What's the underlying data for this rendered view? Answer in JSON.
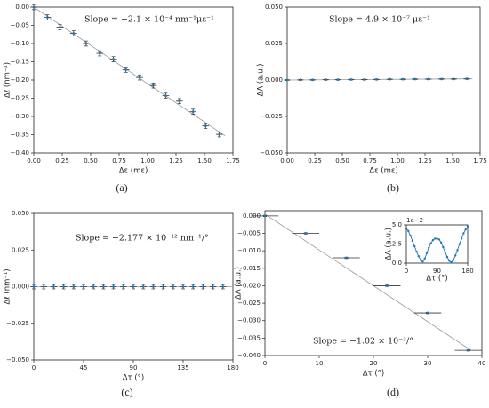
{
  "chart_data": [
    {
      "type": "scatter",
      "caption": "(a)",
      "xlabel": "Δε (mε)",
      "ylabel": "Δℓ (nm⁻¹)",
      "annotation": "Slope = −2.1 × 10⁻⁴ nm⁻¹με⁻¹",
      "color": "#1f77b4",
      "xlim": [
        0,
        1.75
      ],
      "ylim": [
        -0.4,
        0
      ],
      "xticks": [
        {
          "value": 0,
          "label": "0.00"
        },
        {
          "value": 0.25,
          "label": "0.25"
        },
        {
          "value": 0.5,
          "label": "0.50"
        },
        {
          "value": 0.75,
          "label": "0.75"
        },
        {
          "value": 1,
          "label": "1.00"
        },
        {
          "value": 1.25,
          "label": "1.25"
        },
        {
          "value": 1.5,
          "label": "1.50"
        },
        {
          "value": 1.75,
          "label": "1.75"
        }
      ],
      "yticks": [
        {
          "value": 0,
          "label": "0.00"
        },
        {
          "value": -0.05,
          "label": "−0.05"
        },
        {
          "value": -0.1,
          "label": "−0.10"
        },
        {
          "value": -0.15,
          "label": "−0.15"
        },
        {
          "value": -0.2,
          "label": "−0.20"
        },
        {
          "value": -0.25,
          "label": "−0.25"
        },
        {
          "value": -0.3,
          "label": "−0.30"
        },
        {
          "value": -0.35,
          "label": "−0.35"
        },
        {
          "value": -0.4,
          "label": "−0.40"
        }
      ],
      "x": [
        0,
        0.12,
        0.23,
        0.35,
        0.46,
        0.58,
        0.7,
        0.81,
        0.93,
        1.05,
        1.16,
        1.28,
        1.4,
        1.51,
        1.63
      ],
      "values": [
        0,
        -0.028,
        -0.055,
        -0.072,
        -0.1,
        -0.127,
        -0.143,
        -0.172,
        -0.193,
        -0.215,
        -0.243,
        -0.258,
        -0.287,
        -0.326,
        -0.349
      ],
      "xerr": 0.03,
      "yerr": 0.007,
      "fit": {
        "x": [
          0,
          1.68
        ],
        "y": [
          0,
          -0.353
        ]
      }
    },
    {
      "type": "scatter",
      "caption": "(b)",
      "xlabel": "Δε (mε)",
      "ylabel": "ΔΛ (a.u.)",
      "annotation": "Slope = 4.9 × 10⁻⁷ με⁻¹",
      "color": "#1f77b4",
      "xlim": [
        0,
        1.75
      ],
      "ylim": [
        -0.05,
        0.05
      ],
      "xticks": [
        {
          "value": 0,
          "label": "0.00"
        },
        {
          "value": 0.25,
          "label": "0.25"
        },
        {
          "value": 0.5,
          "label": "0.50"
        },
        {
          "value": 0.75,
          "label": "0.75"
        },
        {
          "value": 1,
          "label": "1.00"
        },
        {
          "value": 1.25,
          "label": "1.25"
        },
        {
          "value": 1.5,
          "label": "1.50"
        },
        {
          "value": 1.75,
          "label": "1.75"
        }
      ],
      "yticks": [
        {
          "value": -0.05,
          "label": "−0.050"
        },
        {
          "value": -0.025,
          "label": "−0.025"
        },
        {
          "value": 0,
          "label": "0.000"
        },
        {
          "value": 0.025,
          "label": "0.025"
        },
        {
          "value": 0.05,
          "label": "0.050"
        }
      ],
      "x": [
        0,
        0.12,
        0.23,
        0.35,
        0.46,
        0.58,
        0.7,
        0.81,
        0.93,
        1.05,
        1.16,
        1.28,
        1.4,
        1.51,
        1.63
      ],
      "values": [
        0,
        0.0001,
        0.0001,
        0.0002,
        0.0002,
        0.0003,
        0.0003,
        0.0004,
        0.0005,
        0.0005,
        0.0006,
        0.0006,
        0.0007,
        0.0007,
        0.0008
      ],
      "xerr": 0.03,
      "yerr": 0.0003,
      "fit": {
        "x": [
          0,
          1.68
        ],
        "y": [
          0,
          0.0008
        ]
      }
    },
    {
      "type": "scatter",
      "caption": "(c)",
      "xlabel": "Δτ (°)",
      "ylabel": "Δℓ (nm⁻¹)",
      "annotation": "Slope = −2.177 × 10⁻¹² nm⁻¹/°",
      "color": "#1f77b4",
      "xlim": [
        0,
        180
      ],
      "ylim": [
        -0.05,
        0.05
      ],
      "xticks": [
        0,
        45,
        90,
        135,
        180
      ],
      "yticks": [
        {
          "value": -0.05,
          "label": "−0.050"
        },
        {
          "value": -0.025,
          "label": "−0.025"
        },
        {
          "value": 0,
          "label": "0.000"
        },
        {
          "value": 0.025,
          "label": "0.025"
        },
        {
          "value": 0.05,
          "label": "0.050"
        }
      ],
      "x": [
        0,
        9,
        18,
        27,
        36,
        45,
        54,
        63,
        72,
        81,
        90,
        99,
        108,
        117,
        126,
        135,
        144,
        153,
        162,
        171
      ],
      "values": [
        0,
        0,
        0,
        0,
        0,
        0,
        0,
        0,
        0,
        0,
        0,
        0,
        0,
        0,
        0,
        0,
        0,
        0,
        0,
        0
      ],
      "xerr": 3,
      "yerr": 0.0015,
      "fit": {
        "x": [
          0,
          180
        ],
        "y": [
          0,
          0
        ]
      }
    },
    {
      "type": "scatter",
      "caption": "(d)",
      "xlabel": "Δτ (°)",
      "ylabel": "ΔΛ (a.u.)",
      "annotation": "Slope = −1.02 × 10⁻³/°",
      "color": "#1f77b4",
      "xlim": [
        0,
        40
      ],
      "ylim": [
        -0.04,
        0.0015
      ],
      "xticks": [
        0,
        10,
        20,
        30,
        40
      ],
      "yticks": [
        {
          "value": 0,
          "label": "0.000"
        },
        {
          "value": -0.005,
          "label": "−0.005"
        },
        {
          "value": -0.01,
          "label": "−0.010"
        },
        {
          "value": -0.015,
          "label": "−0.015"
        },
        {
          "value": -0.02,
          "label": "−0.020"
        },
        {
          "value": -0.025,
          "label": "−0.025"
        },
        {
          "value": -0.03,
          "label": "−0.030"
        },
        {
          "value": -0.035,
          "label": "−0.035"
        },
        {
          "value": -0.04,
          "label": "−0.040"
        }
      ],
      "x": [
        0,
        7.5,
        15,
        22.5,
        30,
        37.5
      ],
      "values": [
        0,
        -0.005,
        -0.012,
        -0.02,
        -0.0278,
        -0.0385
      ],
      "xerr": 2.5,
      "yerr": 0.0002,
      "fit": {
        "x": [
          0,
          38
        ],
        "y": [
          0.0005,
          -0.0385
        ]
      },
      "inset": {
        "type": "line",
        "xlabel": "Δτ (°)",
        "ylabel": "ΔΛ (a.u.)",
        "offset_label": "1e−2",
        "color": "#1f77b4",
        "xlim": [
          0,
          180
        ],
        "ylim": [
          0,
          5
        ],
        "xticks": [
          0,
          90,
          180
        ],
        "yticks": [
          {
            "value": 0,
            "label": "0.0"
          },
          {
            "value": 2.5,
            "label": "2.5"
          },
          {
            "value": 5,
            "label": "5.0"
          }
        ],
        "x": [
          0,
          6,
          12,
          18,
          24,
          30,
          36,
          42,
          48,
          54,
          60,
          66,
          72,
          78,
          84,
          90,
          96,
          102,
          108,
          114,
          120,
          126,
          132,
          138,
          144,
          150,
          156,
          162,
          168,
          174,
          180
        ],
        "values": [
          4.5,
          4.2,
          3.6,
          2.9,
          2.2,
          1.5,
          0.9,
          0.4,
          0.2,
          0.6,
          1.3,
          2.0,
          2.6,
          3.0,
          3.2,
          3.2,
          3.1,
          2.7,
          2.1,
          1.4,
          0.8,
          0.3,
          0.1,
          0.4,
          1.0,
          1.7,
          2.5,
          3.2,
          3.9,
          4.4,
          4.8
        ]
      }
    }
  ]
}
